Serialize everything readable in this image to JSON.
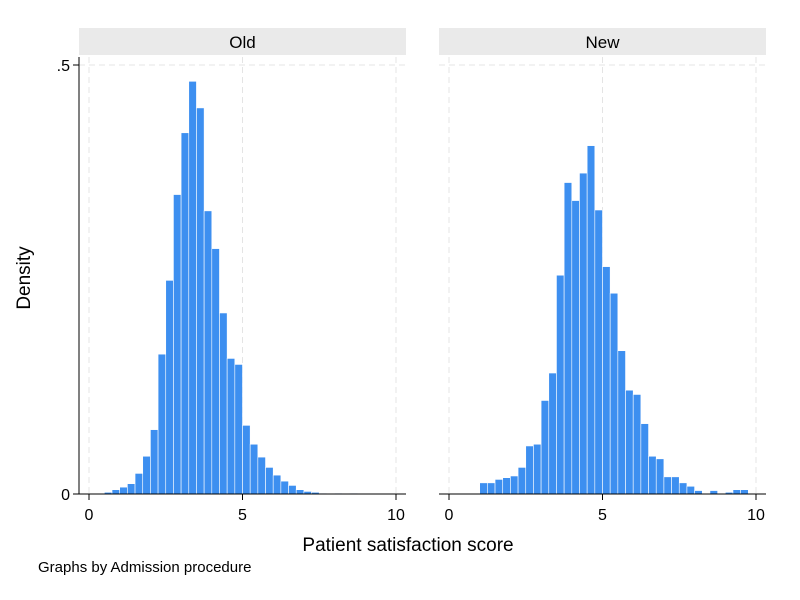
{
  "chart_data": {
    "type": "histogram",
    "xlabel": "Patient satisfaction score",
    "ylabel": "Density",
    "note": "Graphs by Admission procedure",
    "bar_color": "#3d8ff0",
    "xlim": [
      0,
      10
    ],
    "ylim": [
      0,
      0.5
    ],
    "xticks": [
      {
        "value": 0,
        "label": "0"
      },
      {
        "value": 5,
        "label": "5"
      },
      {
        "value": 10,
        "label": "10"
      }
    ],
    "yticks": [
      {
        "value": 0,
        "label": "0"
      },
      {
        "value": 0.5,
        "label": ".5"
      }
    ],
    "grid": true,
    "panels": [
      {
        "name": "Old",
        "bin_width": 0.25,
        "bins": [
          {
            "x0": 0.5,
            "y": 0.002
          },
          {
            "x0": 0.75,
            "y": 0.005
          },
          {
            "x0": 1.0,
            "y": 0.008
          },
          {
            "x0": 1.25,
            "y": 0.012
          },
          {
            "x0": 1.5,
            "y": 0.024
          },
          {
            "x0": 1.75,
            "y": 0.044
          },
          {
            "x0": 2.0,
            "y": 0.075
          },
          {
            "x0": 2.25,
            "y": 0.163
          },
          {
            "x0": 2.5,
            "y": 0.249
          },
          {
            "x0": 2.75,
            "y": 0.349
          },
          {
            "x0": 3.0,
            "y": 0.421
          },
          {
            "x0": 3.25,
            "y": 0.481
          },
          {
            "x0": 3.5,
            "y": 0.45
          },
          {
            "x0": 3.75,
            "y": 0.33
          },
          {
            "x0": 4.0,
            "y": 0.286
          },
          {
            "x0": 4.25,
            "y": 0.211
          },
          {
            "x0": 4.5,
            "y": 0.158
          },
          {
            "x0": 4.75,
            "y": 0.151
          },
          {
            "x0": 5.0,
            "y": 0.08
          },
          {
            "x0": 5.25,
            "y": 0.058
          },
          {
            "x0": 5.5,
            "y": 0.043
          },
          {
            "x0": 5.75,
            "y": 0.031
          },
          {
            "x0": 6.0,
            "y": 0.022
          },
          {
            "x0": 6.25,
            "y": 0.015
          },
          {
            "x0": 6.5,
            "y": 0.01
          },
          {
            "x0": 6.75,
            "y": 0.005
          },
          {
            "x0": 7.0,
            "y": 0.003
          },
          {
            "x0": 7.25,
            "y": 0.002
          },
          {
            "x0": 7.5,
            "y": 0.001
          },
          {
            "x0": 8.0,
            "y": 0.001
          },
          {
            "x0": 8.5,
            "y": 0.001
          },
          {
            "x0": 9.0,
            "y": 0.0005
          }
        ]
      },
      {
        "name": "New",
        "bin_width": 0.25,
        "bins": [
          {
            "x0": 1.0,
            "y": 0.013
          },
          {
            "x0": 1.25,
            "y": 0.013
          },
          {
            "x0": 1.5,
            "y": 0.017
          },
          {
            "x0": 1.75,
            "y": 0.019
          },
          {
            "x0": 2.0,
            "y": 0.021
          },
          {
            "x0": 2.25,
            "y": 0.031
          },
          {
            "x0": 2.5,
            "y": 0.056
          },
          {
            "x0": 2.75,
            "y": 0.058
          },
          {
            "x0": 3.0,
            "y": 0.109
          },
          {
            "x0": 3.25,
            "y": 0.141
          },
          {
            "x0": 3.5,
            "y": 0.255
          },
          {
            "x0": 3.75,
            "y": 0.363
          },
          {
            "x0": 4.0,
            "y": 0.342
          },
          {
            "x0": 4.25,
            "y": 0.374
          },
          {
            "x0": 4.5,
            "y": 0.406
          },
          {
            "x0": 4.75,
            "y": 0.331
          },
          {
            "x0": 5.0,
            "y": 0.265
          },
          {
            "x0": 5.25,
            "y": 0.234
          },
          {
            "x0": 5.5,
            "y": 0.167
          },
          {
            "x0": 5.75,
            "y": 0.121
          },
          {
            "x0": 6.0,
            "y": 0.116
          },
          {
            "x0": 6.25,
            "y": 0.082
          },
          {
            "x0": 6.5,
            "y": 0.044
          },
          {
            "x0": 6.75,
            "y": 0.041
          },
          {
            "x0": 7.0,
            "y": 0.02
          },
          {
            "x0": 7.25,
            "y": 0.02
          },
          {
            "x0": 7.5,
            "y": 0.013
          },
          {
            "x0": 7.75,
            "y": 0.009
          },
          {
            "x0": 8.0,
            "y": 0.004
          },
          {
            "x0": 8.5,
            "y": 0.004
          },
          {
            "x0": 9.0,
            "y": 0.002
          },
          {
            "x0": 9.25,
            "y": 0.005
          },
          {
            "x0": 9.5,
            "y": 0.005
          }
        ]
      }
    ]
  }
}
